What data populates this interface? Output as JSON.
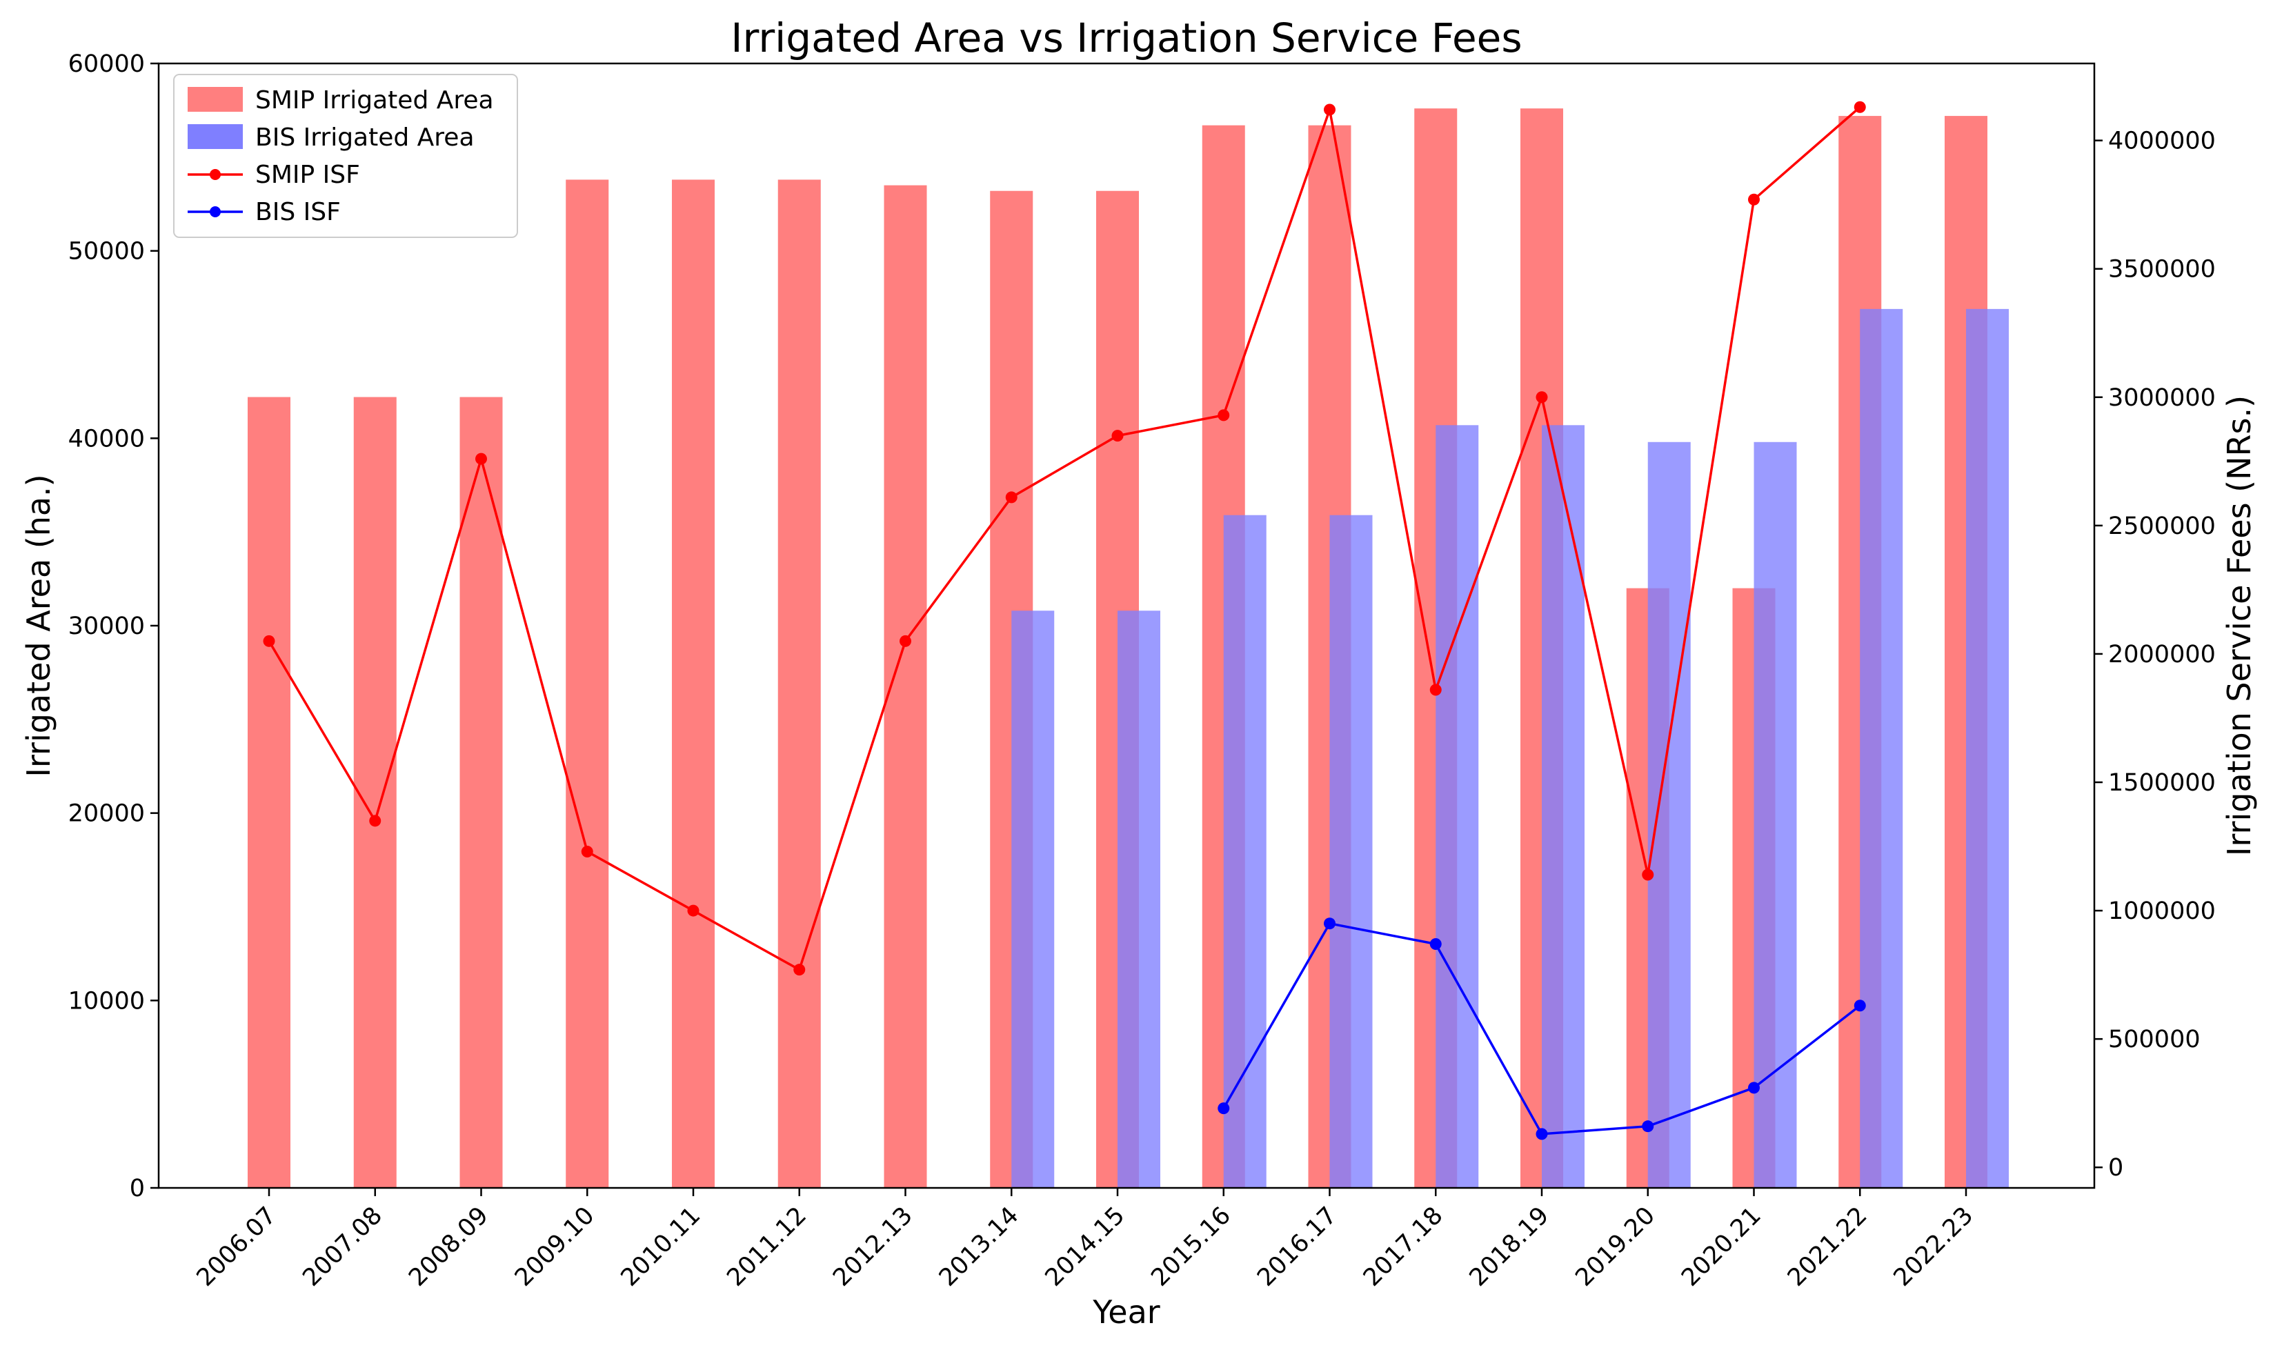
{
  "chart_data": {
    "type": "bar",
    "title": "Irrigated Area vs Irrigation Service Fees",
    "xlabel": "Year",
    "ylabel": "Irrigated Area (ha.)",
    "y2label": "Irrigation Service Fees (NRs.)",
    "ylim": [
      0,
      60000
    ],
    "y2lim": [
      -80000,
      4300000
    ],
    "y_ticks": [
      0,
      10000,
      20000,
      30000,
      40000,
      50000,
      60000
    ],
    "y2_ticks": [
      0,
      500000,
      1000000,
      1500000,
      2000000,
      2500000,
      3000000,
      3500000,
      4000000
    ],
    "grid": false,
    "legend_position": "top-left",
    "categories": [
      "2006.07",
      "2007.08",
      "2008.09",
      "2009.10",
      "2010.11",
      "2011.12",
      "2012.13",
      "2013.14",
      "2014.15",
      "2015.16",
      "2016.17",
      "2017.18",
      "2018.19",
      "2019.20",
      "2020.21",
      "2021.22",
      "2022.23"
    ],
    "series": [
      {
        "name": "SMIP Irrigated Area",
        "kind": "bar",
        "axis": "left",
        "color": "#ff7f7f",
        "values": [
          42200,
          42200,
          42200,
          53800,
          53800,
          53800,
          53500,
          53200,
          53200,
          56700,
          56700,
          57600,
          57600,
          32000,
          32000,
          57200,
          57200
        ]
      },
      {
        "name": "BIS Irrigated Area",
        "kind": "bar",
        "axis": "left",
        "color": "#7f7fff",
        "values": [
          null,
          null,
          null,
          null,
          null,
          null,
          null,
          30800,
          30800,
          35900,
          35900,
          40700,
          40700,
          39800,
          39800,
          46900,
          46900
        ]
      },
      {
        "name": "SMIP ISF",
        "kind": "line",
        "axis": "right",
        "color": "#ff0000",
        "values": [
          2050000,
          1350000,
          2760000,
          1230000,
          1000000,
          770000,
          2050000,
          2610000,
          2850000,
          2930000,
          4120000,
          1860000,
          3000000,
          1140000,
          3770000,
          4130000,
          null
        ]
      },
      {
        "name": "BIS ISF",
        "kind": "line",
        "axis": "right",
        "color": "#0000ff",
        "values": [
          null,
          null,
          null,
          null,
          null,
          null,
          null,
          null,
          null,
          230000,
          950000,
          870000,
          130000,
          160000,
          310000,
          630000,
          null
        ]
      }
    ]
  }
}
